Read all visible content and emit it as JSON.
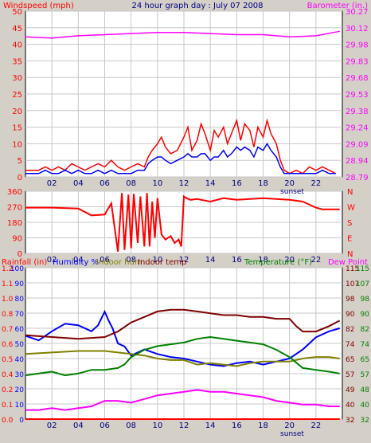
{
  "header": {
    "left_label": "Windspeed (mph)",
    "title": "24 hour graph day : July 07 2008",
    "right_label": "Barometer (in.)"
  },
  "bottom_header": {
    "rainfall": "Rainfall (in)",
    "humidity": "Humidity %",
    "indoor_hum": "Indoor hum",
    "indoor_temp": "Indoor temp",
    "temperature": "Temperature (°F)",
    "dew_point": "Dew Point"
  },
  "colors": {
    "background": "#d4d0c8",
    "plot_bg": "#ffffff",
    "grid": "#c8c8c8",
    "windspeed": "#ff0000",
    "windspeed_avg": "#0000ff",
    "barometer": "#ff00ff",
    "wind_dir": "#ff0000",
    "humidity": "#0000ff",
    "indoor_hum": "#808000",
    "indoor_temp": "#800000",
    "temperature": "#008000",
    "dew_point": "#ff00ff",
    "rainfall": "#ff0000",
    "sunset": "#000080"
  },
  "chart_data": [
    {
      "type": "line",
      "name": "wind_barometer",
      "x_ticks": [
        "02",
        "04",
        "06",
        "08",
        "10",
        "12",
        "14",
        "16",
        "18",
        "20",
        "22"
      ],
      "x_annotation": "sunset",
      "x_annotation_hour": 20.2,
      "y_left_ticks": [
        0,
        5,
        10,
        15,
        20,
        25,
        30,
        35,
        40,
        45,
        50
      ],
      "y_left_range": [
        0,
        50
      ],
      "y_right_ticks": [
        "28.79",
        "28.94",
        "29.09",
        "29.24",
        "29.38",
        "29.53",
        "29.68",
        "29.83",
        "29.98",
        "30.12",
        "30.27"
      ],
      "y_right_range": [
        28.79,
        30.27
      ],
      "series": [
        {
          "key": "windspeed_gust",
          "x": [
            0,
            1,
            1.5,
            2,
            2.5,
            3,
            3.5,
            4,
            4.5,
            5,
            5.5,
            6,
            6.5,
            7,
            7.5,
            8,
            8.5,
            9,
            9.3,
            9.6,
            10,
            10.3,
            10.6,
            11,
            11.5,
            12,
            12.3,
            12.6,
            13,
            13.3,
            13.6,
            14,
            14.3,
            14.6,
            15,
            15.3,
            15.6,
            16,
            16.3,
            16.6,
            17,
            17.3,
            17.6,
            18,
            18.3,
            18.6,
            19,
            19.3,
            19.6,
            20,
            20.5,
            21,
            21.5,
            22,
            22.5,
            23,
            23.5
          ],
          "y": [
            2,
            2,
            3,
            2,
            3,
            2,
            4,
            3,
            2,
            3,
            4,
            3,
            5,
            3,
            2,
            3,
            4,
            3,
            6,
            8,
            10,
            12,
            9,
            7,
            8,
            12,
            15,
            8,
            11,
            16,
            13,
            8,
            14,
            12,
            15,
            10,
            13,
            17,
            11,
            16,
            14,
            9,
            15,
            12,
            17,
            13,
            10,
            5,
            2,
            1,
            2,
            1,
            3,
            2,
            3,
            2,
            1
          ]
        },
        {
          "key": "windspeed_avg",
          "x": [
            0,
            1,
            1.5,
            2,
            2.5,
            3,
            3.5,
            4,
            4.5,
            5,
            5.5,
            6,
            6.5,
            7,
            7.5,
            8,
            8.5,
            9,
            9.3,
            9.6,
            10,
            10.3,
            10.6,
            11,
            11.5,
            12,
            12.3,
            12.6,
            13,
            13.3,
            13.6,
            14,
            14.3,
            14.6,
            15,
            15.3,
            15.6,
            16,
            16.3,
            16.6,
            17,
            17.3,
            17.6,
            18,
            18.3,
            18.6,
            19,
            19.3,
            19.6,
            20,
            20.5,
            21,
            21.5,
            22,
            22.5,
            23,
            23.5
          ],
          "y": [
            1,
            1,
            2,
            1,
            1,
            2,
            1,
            2,
            1,
            1,
            2,
            1,
            2,
            1,
            1,
            1,
            2,
            2,
            4,
            5,
            6,
            6,
            5,
            4,
            5,
            6,
            7,
            6,
            6,
            7,
            7,
            5,
            6,
            6,
            8,
            6,
            7,
            9,
            8,
            9,
            8,
            6,
            9,
            8,
            10,
            8,
            6,
            3,
            1,
            1,
            1,
            1,
            1,
            1,
            2,
            1,
            1
          ]
        },
        {
          "key": "barometer",
          "x": [
            0,
            2,
            4,
            6,
            8,
            10,
            12,
            14,
            16,
            18,
            20,
            22,
            23.8
          ],
          "y": [
            30.04,
            30.03,
            30.05,
            30.06,
            30.07,
            30.08,
            30.08,
            30.07,
            30.06,
            30.06,
            30.04,
            30.05,
            30.09
          ]
        }
      ]
    },
    {
      "type": "line",
      "name": "wind_direction",
      "x_ticks": [
        "02",
        "04",
        "06",
        "08",
        "10",
        "12",
        "14",
        "16",
        "18",
        "20",
        "22"
      ],
      "y_left_ticks": [
        0,
        90,
        180,
        270,
        360
      ],
      "y_left_range": [
        0,
        360
      ],
      "y_right_ticks": [
        "N",
        "E",
        "S",
        "W",
        "N"
      ],
      "series": [
        {
          "key": "direction",
          "x": [
            0,
            2,
            4,
            5,
            6,
            6.5,
            7,
            7.3,
            7.5,
            7.8,
            8,
            8.2,
            8.5,
            8.7,
            9,
            9.2,
            9.4,
            9.6,
            9.8,
            10,
            10.3,
            10.6,
            11,
            11.3,
            11.6,
            11.8,
            12,
            12.2,
            12.5,
            13,
            14,
            15,
            16,
            17,
            18,
            19,
            20,
            21,
            22,
            22.5,
            23.8
          ],
          "y": [
            265,
            265,
            260,
            220,
            225,
            290,
            10,
            350,
            20,
            340,
            30,
            345,
            60,
            330,
            40,
            350,
            40,
            300,
            90,
            320,
            110,
            80,
            100,
            60,
            80,
            40,
            330,
            320,
            310,
            315,
            300,
            320,
            310,
            315,
            320,
            315,
            310,
            300,
            265,
            255,
            255
          ]
        }
      ]
    },
    {
      "type": "line",
      "name": "temp_humidity",
      "x_ticks": [
        "02",
        "04",
        "06",
        "08",
        "10",
        "12",
        "14",
        "16",
        "18",
        "20",
        "22"
      ],
      "x_annotation": "sunset",
      "x_annotation_hour": 20.2,
      "y_rain_ticks": [
        "0.0",
        "0.1",
        "0.2",
        "0.4",
        "0.5",
        "0.6",
        "0.7",
        "0.8",
        "1.0",
        "1.1",
        "1.2"
      ],
      "y_hum_ticks": [
        0,
        10,
        20,
        30,
        40,
        50,
        60,
        70,
        80,
        90,
        100
      ],
      "y_hum_range": [
        0,
        100
      ],
      "y_in_ticks": [
        32,
        40,
        49,
        57,
        65,
        74,
        82,
        90,
        98,
        107,
        115
      ],
      "y_out_ticks": [
        32,
        40,
        48,
        57,
        65,
        74,
        82,
        90,
        98,
        107,
        115
      ],
      "y_temp_range": [
        32,
        115
      ],
      "series": [
        {
          "key": "humidity",
          "x": [
            0,
            1,
            2,
            3,
            4,
            5,
            5.5,
            6,
            6.3,
            6.6,
            7,
            7.5,
            8,
            9,
            10,
            11,
            12,
            13,
            14,
            15,
            16,
            17,
            18,
            19,
            20,
            21,
            22,
            23,
            23.8
          ],
          "y": [
            55,
            52,
            58,
            63,
            62,
            58,
            62,
            71,
            65,
            60,
            50,
            48,
            42,
            46,
            43,
            41,
            40,
            38,
            36,
            35,
            37,
            38,
            36,
            38,
            40,
            46,
            54,
            58,
            60
          ]
        },
        {
          "key": "indoor_hum",
          "x": [
            0,
            2,
            4,
            6,
            7,
            8,
            9,
            10,
            11,
            12,
            13,
            14,
            15,
            16,
            17,
            18,
            19,
            20,
            21,
            22,
            23,
            23.8
          ],
          "y": [
            43,
            44,
            45,
            45,
            44,
            43,
            42,
            40,
            39,
            39,
            36,
            37,
            36,
            35,
            37,
            38,
            38,
            38,
            40,
            41,
            41,
            40
          ]
        },
        {
          "key": "indoor_temp",
          "x": [
            0,
            2,
            4,
            6,
            7,
            8,
            9,
            10,
            11,
            12,
            13,
            14,
            15,
            16,
            17,
            18,
            19,
            20,
            20.5,
            21,
            22,
            23,
            23.8
          ],
          "y": [
            78,
            77,
            76,
            77,
            80,
            85,
            88,
            91,
            92,
            92,
            91,
            90,
            89,
            89,
            88,
            88,
            87,
            87,
            83,
            80,
            80,
            83,
            86
          ]
        },
        {
          "key": "temperature",
          "x": [
            0,
            1,
            2,
            3,
            4,
            5,
            6,
            7,
            7.5,
            8,
            9,
            10,
            11,
            12,
            13,
            14,
            15,
            16,
            17,
            18,
            19,
            20,
            21,
            22,
            23,
            23.8
          ],
          "y": [
            56,
            57,
            58,
            56,
            57,
            59,
            59,
            60,
            62,
            66,
            70,
            72,
            73,
            74,
            76,
            77,
            76,
            75,
            74,
            73,
            70,
            66,
            60,
            59,
            58,
            57
          ]
        },
        {
          "key": "dew_point",
          "x": [
            0,
            1,
            2,
            3,
            4,
            5,
            6,
            7,
            8,
            9,
            10,
            11,
            12,
            13,
            14,
            15,
            16,
            17,
            18,
            19,
            20,
            21,
            22,
            23,
            23.8
          ],
          "y": [
            37,
            37,
            38,
            37,
            38,
            39,
            42,
            42,
            41,
            43,
            45,
            46,
            47,
            48,
            47,
            47,
            46,
            45,
            44,
            42,
            41,
            40,
            40,
            39,
            39
          ]
        },
        {
          "key": "rainfall",
          "x": [
            0,
            23.8
          ],
          "y": [
            0,
            0
          ]
        }
      ]
    }
  ]
}
